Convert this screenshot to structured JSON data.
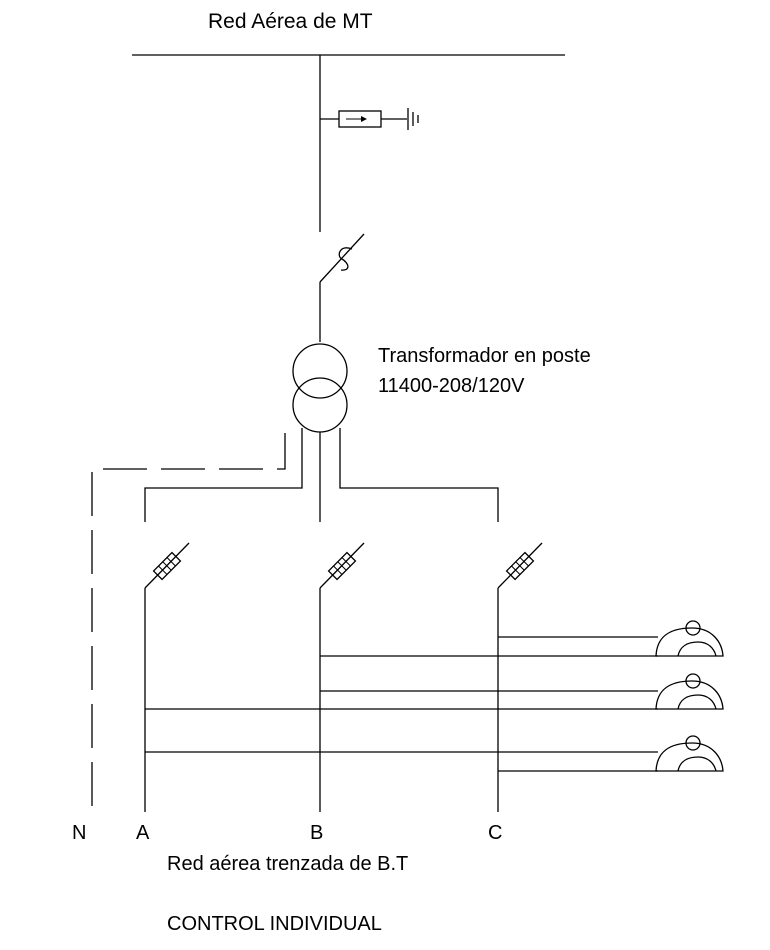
{
  "labels": {
    "mt_network": "Red Aérea de MT",
    "transformer_name": "Transformador en poste",
    "transformer_rating": "11400-208/120V",
    "phase_n": "N",
    "phase_a": "A",
    "phase_b": "B",
    "phase_c": "C",
    "bt_network": "Red aérea trenzada de B.T",
    "control_type": "CONTROL INDIVIDUAL"
  }
}
